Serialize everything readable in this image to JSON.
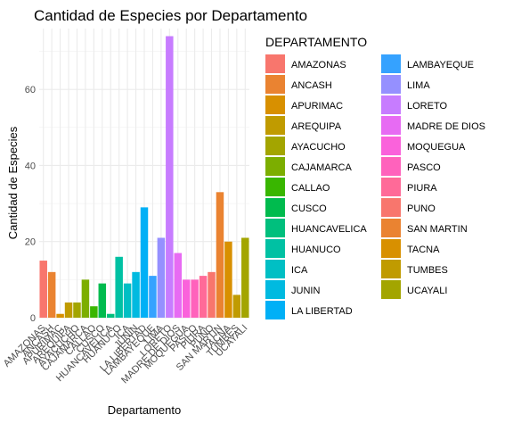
{
  "chart_data": {
    "type": "bar",
    "title": "Cantidad de Especies por Departamento",
    "xlabel": "Departamento",
    "ylabel": "Cantidad de Especies",
    "ylim": [
      0,
      76
    ],
    "yticks": [
      0,
      20,
      40,
      60
    ],
    "grid": true,
    "legend": {
      "title": "DEPARTAMENTO",
      "placement": "right",
      "columns": 2
    },
    "categories": [
      "AMAZONAS",
      "ANCASH",
      "APURIMAC",
      "AREQUIPA",
      "AYACUCHO",
      "CAJAMARCA",
      "CALLAO",
      "CUSCO",
      "HUANCAVELICA",
      "HUANUCO",
      "ICA",
      "JUNIN",
      "LA LIBERTAD",
      "LAMBAYEQUE",
      "LIMA",
      "LORETO",
      "MADRE DE DIOS",
      "MOQUEGUA",
      "PASCO",
      "PIURA",
      "PUNO",
      "SAN MARTIN",
      "TACNA",
      "TUMBES",
      "UCAYALI"
    ],
    "values": [
      15,
      12,
      1,
      4,
      4,
      10,
      3,
      9,
      1,
      16,
      9,
      12,
      29,
      11,
      21,
      74,
      17,
      10,
      10,
      11,
      12,
      33,
      20,
      6,
      21
    ],
    "colors": [
      "#F8766D",
      "#EA8331",
      "#D89000",
      "#C09B00",
      "#A3A500",
      "#7CAE00",
      "#39B600",
      "#00BB4E",
      "#00BF7D",
      "#00C1A3",
      "#00BFC4",
      "#00BAE0",
      "#00B0F6",
      "#35A2FF",
      "#9590FF",
      "#C77CFF",
      "#E76BF3",
      "#FA62DB",
      "#FF62BC",
      "#FF6A98",
      "#F8766D",
      "#EA8331",
      "#D89000",
      "#C09B00",
      "#A3A500"
    ]
  }
}
